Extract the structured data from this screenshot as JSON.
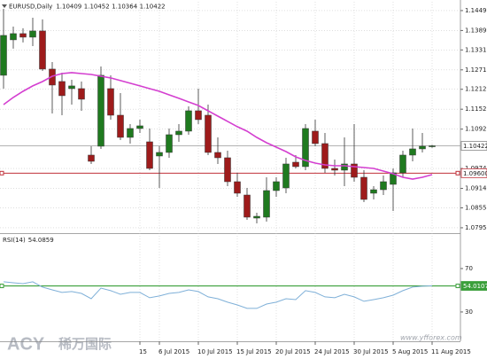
{
  "chart_data": [
    {
      "type": "candlestick",
      "title": "EURUSD,Daily",
      "categories": [
        null,
        null,
        null,
        null,
        null,
        null,
        null,
        null,
        null,
        null,
        null,
        null,
        null,
        null,
        "15",
        null,
        "6 Jul 2015",
        null,
        null,
        null,
        "10 Jul 2015",
        null,
        null,
        null,
        "15 Jul 2015",
        null,
        null,
        null,
        "20 Jul 2015",
        null,
        null,
        null,
        "24 Jul 2015",
        null,
        null,
        null,
        "30 Jul 2015",
        null,
        null,
        null,
        "5 Aug 2015",
        null,
        null,
        null,
        "11 Aug 2015"
      ],
      "open": [
        1.12546,
        1.13614,
        1.13801,
        1.13694,
        1.13881,
        1.12733,
        1.12359,
        1.12145,
        1.12145,
        1.10143,
        1.1041,
        1.12145,
        1.11344,
        1.10677,
        1.10944,
        1.10543,
        1.10116,
        1.10223,
        1.10757,
        1.10864,
        1.11478,
        1.11344,
        1.10223,
        1.10063,
        1.09342,
        1.08941,
        1.08247,
        1.08274,
        1.09075,
        1.09155,
        1.09929,
        1.09796,
        1.10864,
        1.1049,
        1.09742,
        1.09689,
        1.09876,
        1.09475,
        1.08995,
        1.09101,
        1.09262,
        1.09609,
        1.10143,
        1.1033,
        1.10409
      ],
      "high": [
        1.14548,
        1.14014,
        1.13961,
        1.14281,
        1.14228,
        1.12946,
        1.12626,
        1.12412,
        1.12359,
        1.1041,
        1.12813,
        1.12546,
        1.12012,
        1.11077,
        1.11211,
        1.10944,
        1.1041,
        1.10944,
        1.11077,
        1.11611,
        1.12145,
        1.11665,
        1.10677,
        1.10276,
        1.09609,
        1.09155,
        1.08407,
        1.09475,
        1.09475,
        1.10063,
        1.10143,
        1.11077,
        1.11211,
        1.1081,
        1.10009,
        1.10677,
        1.11077,
        1.09689,
        1.09208,
        1.09529,
        1.09742,
        1.10276,
        1.10944,
        1.1081,
        1.10452
      ],
      "low": [
        1.12145,
        1.13347,
        1.13534,
        1.13427,
        1.12679,
        1.11398,
        1.11344,
        1.11665,
        1.11478,
        1.09876,
        1.1033,
        1.11211,
        1.10597,
        1.1049,
        1.1081,
        1.09689,
        1.09155,
        1.10063,
        1.10543,
        1.10757,
        1.11077,
        1.10143,
        1.09876,
        1.09208,
        1.08888,
        1.08194,
        1.08087,
        1.0814,
        1.08888,
        1.08995,
        1.09742,
        1.09689,
        1.1041,
        1.09609,
        1.09529,
        1.09208,
        1.09342,
        1.08728,
        1.08808,
        1.08941,
        1.08461,
        1.09475,
        1.09956,
        1.10223,
        1.10364
      ],
      "close": [
        1.13747,
        1.13801,
        1.13694,
        1.13881,
        1.12733,
        1.12252,
        1.11932,
        1.12226,
        1.11825,
        1.09956,
        1.12546,
        1.11344,
        1.10677,
        1.10944,
        1.11024,
        1.09742,
        1.10223,
        1.10757,
        1.10864,
        1.11478,
        1.11211,
        1.10223,
        1.10063,
        1.09342,
        1.08995,
        1.08274,
        1.083,
        1.09075,
        1.09342,
        1.09876,
        1.09796,
        1.10944,
        1.1049,
        1.09742,
        1.09689,
        1.09876,
        1.09475,
        1.08808,
        1.09101,
        1.09342,
        1.09609,
        1.10143,
        1.1033,
        1.1041,
        1.10422
      ],
      "up_color": "#1f7a1f",
      "down_color": "#9e1b1b",
      "overlay": {
        "type": "line",
        "color": "#d43fd0",
        "values": [
          1.11665,
          1.11879,
          1.12065,
          1.12226,
          1.12359,
          1.12519,
          1.12599,
          1.12626,
          1.12599,
          1.12572,
          1.12519,
          1.12466,
          1.12386,
          1.12306,
          1.12226,
          1.12145,
          1.12065,
          1.11958,
          1.11852,
          1.11745,
          1.11638,
          1.11478,
          1.11318,
          1.11158,
          1.10998,
          1.10864,
          1.10677,
          1.10516,
          1.10383,
          1.10249,
          1.10089,
          1.09982,
          1.09902,
          1.09849,
          1.09822,
          1.09822,
          1.09796,
          1.09769,
          1.09742,
          1.09662,
          1.09582,
          1.09475,
          1.09422,
          1.09475,
          1.09555
        ]
      },
      "ylim": [
        1.0782,
        1.1476
      ],
      "yticks": [
        1.14495,
        1.13895,
        {
          "value": 1.1331,
          "label": "1.13310"
        },
        {
          "value": 1.1271,
          "label": "1.12710"
        },
        1.12125,
        1.11525,
        1.10925,
        {
          "value": 1.0974,
          "label": "1.09740"
        },
        {
          "value": 1.0914,
          "label": "1.09140"
        },
        1.08555,
        1.07955
      ],
      "grid": true,
      "price_line": 1.10422,
      "level": {
        "value": 1.096,
        "label": "1.09600"
      },
      "level_color": "#c0303a"
    },
    {
      "type": "line",
      "title": "RSI(14)",
      "color": "#7fb0d8",
      "values": [
        57.8,
        56.9,
        56.1,
        57.8,
        52.9,
        50.4,
        48.0,
        48.8,
        47.1,
        42.2,
        52.0,
        49.6,
        46.3,
        48.0,
        48.0,
        43.1,
        44.7,
        47.1,
        48.0,
        50.4,
        48.8,
        43.9,
        42.2,
        39.0,
        36.5,
        33.3,
        33.3,
        37.3,
        39.0,
        42.2,
        41.4,
        49.6,
        48.0,
        43.9,
        43.1,
        46.3,
        43.9,
        39.8,
        41.4,
        43.1,
        45.5,
        49.6,
        52.9,
        53.7,
        54.0859
      ],
      "ylim": [
        3,
        101
      ],
      "yticks": [
        70,
        30
      ],
      "level": 54.0107,
      "level_color": "#3a9f3a"
    }
  ],
  "watermark": {
    "brand": "ACY",
    "name": "稀万国际",
    "url": "www.yfforex.com"
  }
}
